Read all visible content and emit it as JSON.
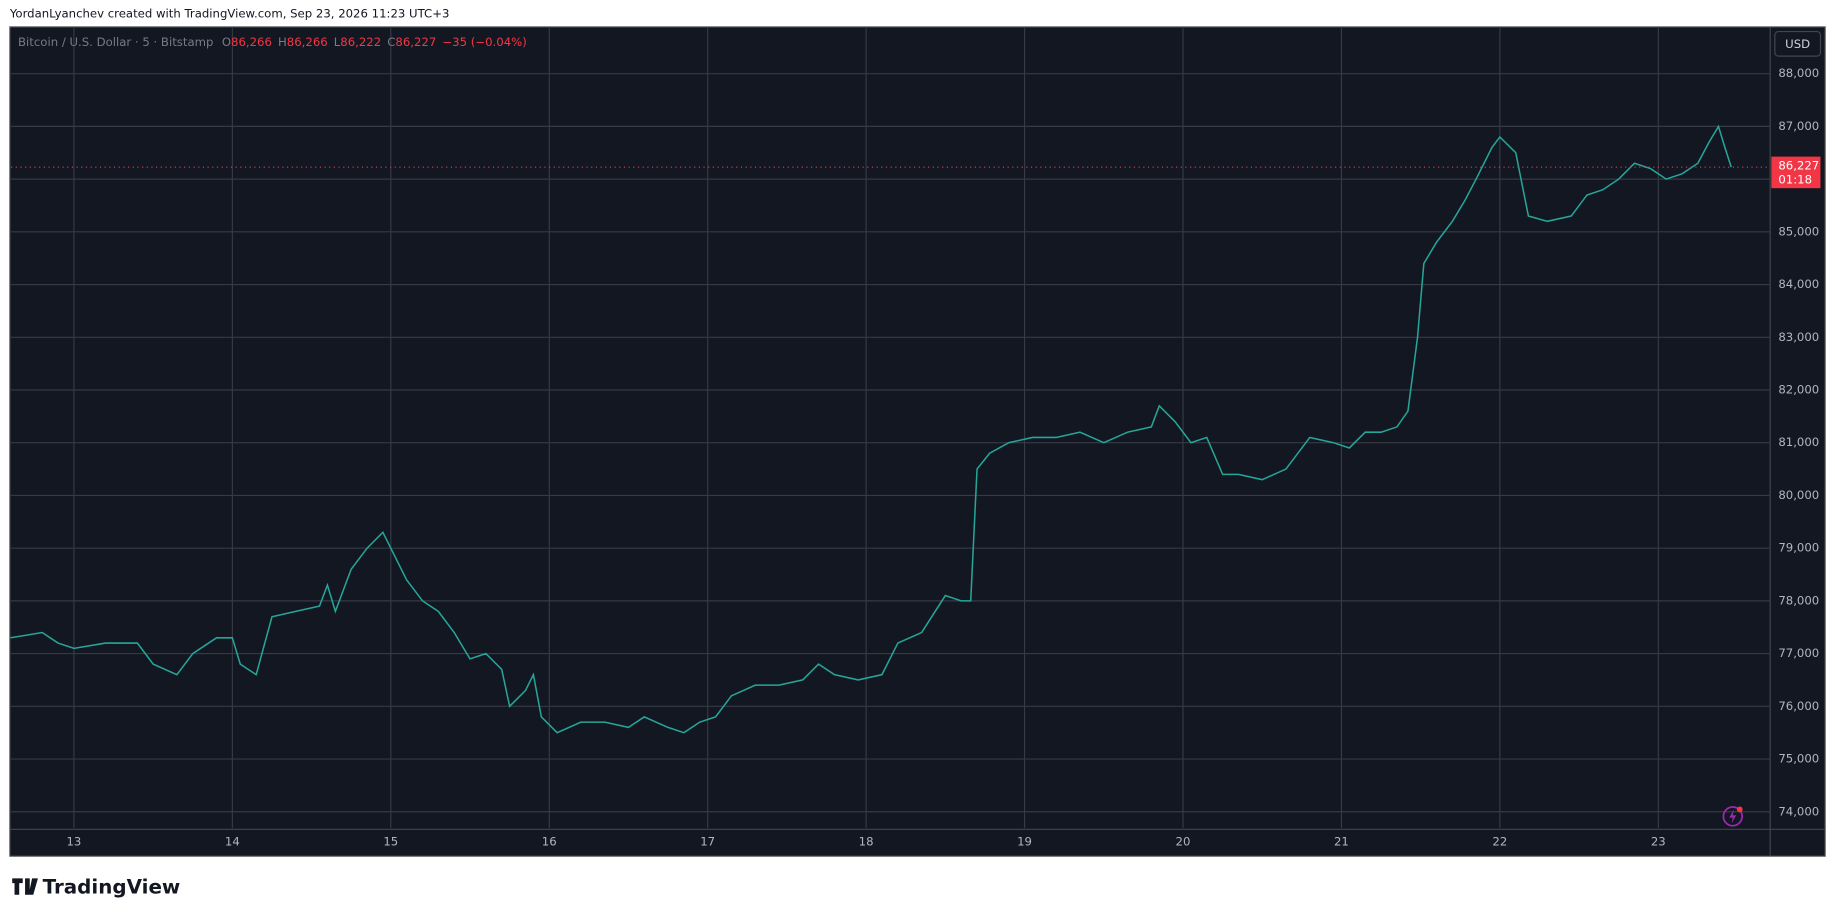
{
  "header": {
    "credit": "YordanLyanchev created with TradingView.com, Sep 23, 2026 11:23 UTC+3",
    "symbol": "Bitcoin / U.S. Dollar · 5 · Bitstamp",
    "open_label": "O",
    "open": "86,266",
    "high_label": "H",
    "high": "86,266",
    "low_label": "L",
    "low": "86,222",
    "close_label": "C",
    "close": "86,227",
    "change": "−35 (−0.04%)",
    "currency": "USD",
    "brand": "TradingView"
  },
  "chart_data": {
    "type": "line",
    "color": "#26a69a",
    "grid": true,
    "x": [
      12.6,
      12.8,
      12.9,
      13.0,
      13.2,
      13.4,
      13.5,
      13.65,
      13.75,
      13.9,
      14.0,
      14.05,
      14.15,
      14.25,
      14.4,
      14.55,
      14.6,
      14.65,
      14.75,
      14.85,
      14.95,
      15.0,
      15.1,
      15.2,
      15.3,
      15.4,
      15.5,
      15.6,
      15.7,
      15.75,
      15.85,
      15.9,
      15.95,
      16.05,
      16.2,
      16.35,
      16.5,
      16.6,
      16.75,
      16.85,
      16.95,
      17.05,
      17.15,
      17.3,
      17.45,
      17.6,
      17.7,
      17.8,
      17.95,
      18.1,
      18.2,
      18.35,
      18.5,
      18.6,
      18.66,
      18.7,
      18.78,
      18.9,
      19.05,
      19.2,
      19.35,
      19.5,
      19.65,
      19.8,
      19.85,
      19.95,
      20.05,
      20.15,
      20.25,
      20.35,
      20.5,
      20.65,
      20.8,
      20.95,
      21.05,
      21.15,
      21.25,
      21.35,
      21.42,
      21.48,
      21.52,
      21.6,
      21.7,
      21.78,
      21.85,
      21.95,
      22.0,
      22.1,
      22.18,
      22.3,
      22.45,
      22.55,
      22.65,
      22.75,
      22.85,
      22.95,
      23.05,
      23.15,
      23.25,
      23.32,
      23.38,
      23.42,
      23.46
    ],
    "values": [
      77300,
      77400,
      77200,
      77100,
      77200,
      77200,
      76800,
      76600,
      77000,
      77300,
      77300,
      76800,
      76600,
      77700,
      77800,
      77900,
      78300,
      77800,
      78600,
      79000,
      79300,
      79000,
      78400,
      78000,
      77800,
      77400,
      76900,
      77000,
      76700,
      76000,
      76300,
      76600,
      75800,
      75500,
      75700,
      75700,
      75600,
      75800,
      75600,
      75500,
      75700,
      75800,
      76200,
      76400,
      76400,
      76500,
      76800,
      76600,
      76500,
      76600,
      77200,
      77400,
      78100,
      78000,
      78000,
      80500,
      80800,
      81000,
      81100,
      81100,
      81200,
      81000,
      81200,
      81300,
      81700,
      81400,
      81000,
      81100,
      80400,
      80400,
      80300,
      80500,
      81100,
      81000,
      80900,
      81200,
      81200,
      81300,
      81600,
      83000,
      84400,
      84800,
      85200,
      85600,
      86000,
      86600,
      86800,
      86500,
      85300,
      85200,
      85300,
      85700,
      85800,
      86000,
      86300,
      86200,
      86000,
      86100,
      86300,
      86700,
      87000,
      86600,
      86227
    ],
    "xlim": [
      12.603,
      23.706
    ],
    "xticks": [
      13,
      14,
      15,
      16,
      17,
      18,
      19,
      20,
      21,
      22,
      23
    ],
    "ylim": [
      73690,
      88865
    ],
    "yticks": [
      {
        "value": 74000,
        "label": "74,000"
      },
      {
        "value": 75000,
        "label": "75,000"
      },
      {
        "value": 76000,
        "label": "76,000"
      },
      {
        "value": 77000,
        "label": "77,000"
      },
      {
        "value": 78000,
        "label": "78,000"
      },
      {
        "value": 79000,
        "label": "79,000"
      },
      {
        "value": 80000,
        "label": "80,000"
      },
      {
        "value": 81000,
        "label": "81,000"
      },
      {
        "value": 82000,
        "label": "82,000"
      },
      {
        "value": 83000,
        "label": "83,000"
      },
      {
        "value": 84000,
        "label": "84,000"
      },
      {
        "value": 85000,
        "label": "85,000"
      },
      {
        "value": 86000,
        "label": "86,000"
      },
      {
        "value": 87000,
        "label": "87,000"
      },
      {
        "value": 88000,
        "label": "88,000"
      }
    ],
    "last_price": {
      "value": 86227,
      "label": "86,227"
    },
    "countdown": "01:18"
  }
}
